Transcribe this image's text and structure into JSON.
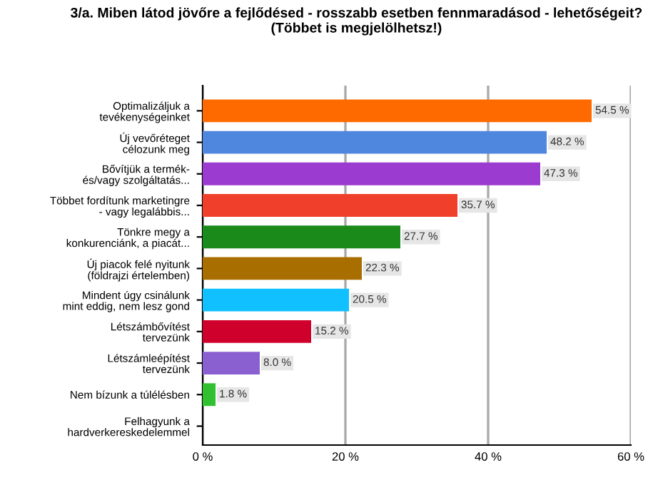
{
  "chart_data": {
    "type": "bar",
    "orientation": "horizontal",
    "title": "3/a. Miben látod jövőre a fejlődésed - rosszabb esetben fennmaradásod - lehetőségeit?\n(Többet is megjelölhetsz!)",
    "categories": [
      "Optimalizáljuk a\ntevékenységeinket",
      "Új vevőréteget\ncélozunk meg",
      "Bővítjük a termék-\nés/vagy szolgáltatás...",
      "Többet fordítunk marketingre\n- vagy legalábbis...",
      "Tönkre megy a\nkonkurenciánk, a piacát...",
      "Új piacok felé nyitunk\n(földrajzi értelemben)",
      "Mindent úgy csinálunk\nmint eddig, nem lesz gond",
      "Létszámbővítést\ntervezünk",
      "Létszámleépítést\ntervezünk",
      "Nem bízunk a túlélésben",
      "Felhagyunk a\nhardverkereskedelemmel"
    ],
    "values": [
      54.5,
      48.2,
      47.3,
      35.7,
      27.7,
      22.3,
      20.5,
      15.2,
      8.0,
      1.8,
      0
    ],
    "colors": [
      "#ff6a00",
      "#4f86de",
      "#9b3bd0",
      "#f0402c",
      "#1a8a1a",
      "#a86e00",
      "#10c0ff",
      "#d0002c",
      "#8a60d0",
      "#30c030",
      "#888888"
    ],
    "value_labels": [
      "54.5 %",
      "48.2 %",
      "47.3 %",
      "35.7 %",
      "27.7 %",
      "22.3 %",
      "20.5 %",
      "15.2 %",
      "8.0 %",
      "1.8 %",
      null
    ],
    "xlim": [
      0,
      60
    ],
    "xticks": [
      {
        "value": 0,
        "label": "0 %"
      },
      {
        "value": 20,
        "label": "20 %"
      },
      {
        "value": 40,
        "label": "40 %"
      },
      {
        "value": 60,
        "label": "60 %"
      }
    ],
    "grid": "x",
    "legend": false
  }
}
